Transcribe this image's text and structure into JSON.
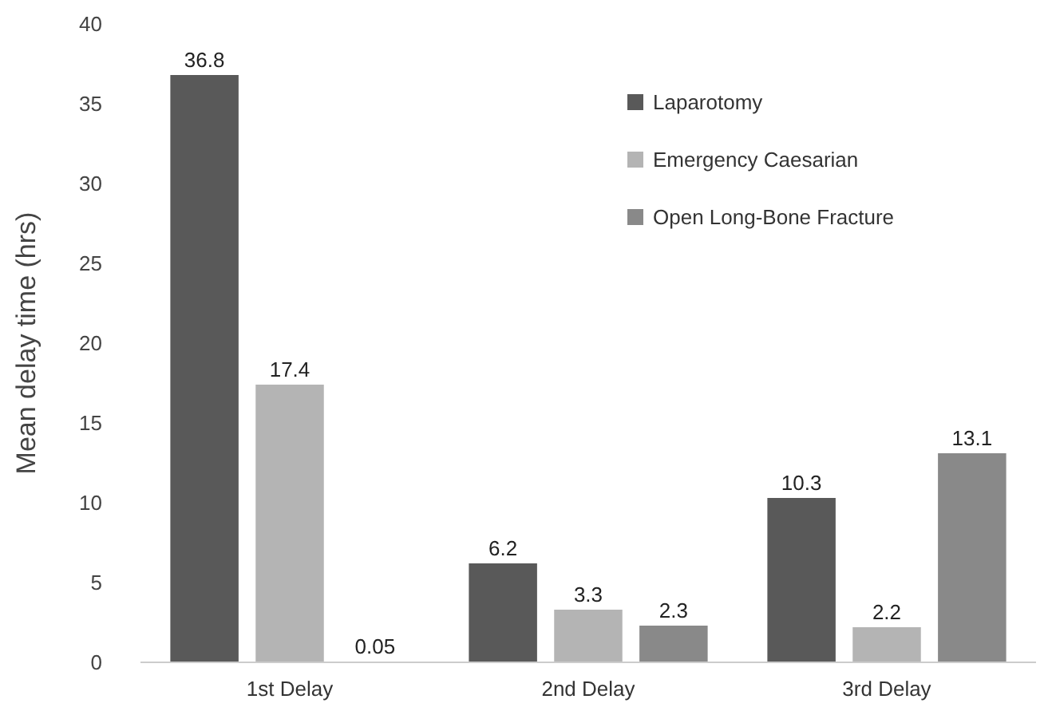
{
  "chart_data": {
    "type": "bar",
    "ylabel": "Mean delay time (hrs)",
    "categories": [
      "1st Delay",
      "2nd Delay",
      "3rd Delay"
    ],
    "series": [
      {
        "name": "Laparotomy",
        "color": "#595959",
        "values": [
          36.8,
          6.2,
          10.3
        ]
      },
      {
        "name": "Emergency Caesarian",
        "color": "#b4b4b4",
        "values": [
          17.4,
          3.3,
          2.2
        ]
      },
      {
        "name": "Open Long-Bone Fracture",
        "color": "#898989",
        "values": [
          0.05,
          2.3,
          13.1
        ]
      }
    ],
    "ylim": [
      0,
      40
    ],
    "yticks": [
      0,
      5,
      10,
      15,
      20,
      25,
      30,
      35,
      40
    ],
    "grid": false,
    "legend": "top right",
    "data_labels": true
  }
}
